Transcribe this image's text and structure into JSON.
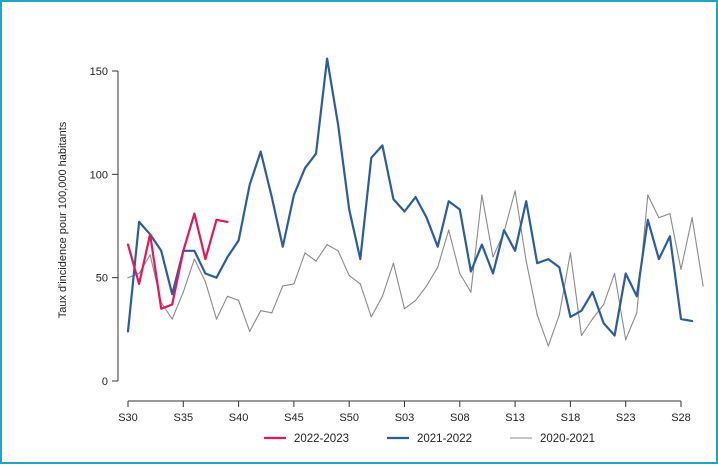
{
  "chart_data": {
    "type": "line",
    "title": "",
    "xlabel": "",
    "ylabel": "Taux d'incidence pour 100,000 habitants",
    "ylim": [
      0,
      160
    ],
    "yticks": [
      0,
      50,
      100,
      150
    ],
    "x_tick_labels": [
      "S30",
      "S35",
      "S40",
      "S45",
      "S50",
      "S03",
      "S08",
      "S13",
      "S18",
      "S23",
      "S28"
    ],
    "x_tick_week_index": [
      0,
      5,
      10,
      15,
      20,
      25,
      30,
      35,
      40,
      45,
      50
    ],
    "x_range": [
      -1,
      52
    ],
    "grid": false,
    "legend_position": "bottom",
    "series": [
      {
        "name": "2022-2023",
        "color": "#e2185b",
        "line_width": "thick",
        "values": [
          66,
          47,
          71,
          35,
          37,
          63,
          81,
          59,
          78,
          77
        ]
      },
      {
        "name": "2021-2022",
        "color": "#2b5d9e",
        "line_width": "thick",
        "values": [
          24,
          77,
          71,
          63,
          42,
          63,
          63,
          52,
          50,
          60,
          68,
          95,
          111,
          89,
          65,
          90,
          103,
          110,
          156,
          124,
          83,
          59,
          108,
          114,
          88,
          82,
          89,
          79,
          65,
          87,
          83,
          53,
          66,
          52,
          73,
          63,
          87,
          57,
          59,
          55,
          31,
          34,
          43,
          28,
          22,
          52,
          41,
          78,
          59,
          70,
          30,
          29
        ]
      },
      {
        "name": "2020-2021",
        "color": "#8a8a8a",
        "line_width": "thin",
        "values": [
          50,
          52,
          61,
          38,
          30,
          43,
          59,
          48,
          30,
          41,
          39,
          24,
          34,
          33,
          46,
          47,
          62,
          58,
          66,
          63,
          51,
          47,
          31,
          41,
          57,
          35,
          39,
          46,
          55,
          73,
          52,
          43,
          90,
          60,
          72,
          92,
          58,
          32,
          17,
          32,
          62,
          22,
          30,
          37,
          52,
          20,
          33,
          90,
          79,
          81,
          54,
          79,
          46
        ]
      }
    ]
  }
}
